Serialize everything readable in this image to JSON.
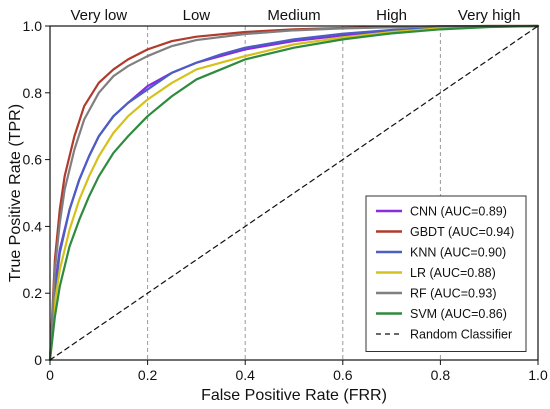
{
  "chart_data": {
    "type": "line",
    "title": "",
    "xlabel": "False Positive Rate (FRR)",
    "ylabel": "True Positive Rate (TPR)",
    "xlim": [
      0,
      1
    ],
    "ylim": [
      0,
      1
    ],
    "x_ticks": [
      "0",
      "0.2",
      "0.4",
      "0.6",
      "0.8",
      "1.0"
    ],
    "y_ticks": [
      "0",
      "0.2",
      "0.4",
      "0.6",
      "0.8",
      "1.0"
    ],
    "grid": "vertical dashed lines at 0.2, 0.4, 0.6, 0.8",
    "legend_position": "bottom-right",
    "regions": [
      {
        "label": "Very low",
        "from": 0.0,
        "to": 0.2
      },
      {
        "label": "Low",
        "from": 0.2,
        "to": 0.4
      },
      {
        "label": "Medium",
        "from": 0.4,
        "to": 0.6
      },
      {
        "label": "High",
        "from": 0.6,
        "to": 0.8
      },
      {
        "label": "Very high",
        "from": 0.8,
        "to": 1.0
      }
    ],
    "series": [
      {
        "name": "CNN (AUC=0.89)",
        "color": "#8a2be2",
        "x": [
          0,
          0.01,
          0.02,
          0.04,
          0.06,
          0.08,
          0.1,
          0.13,
          0.16,
          0.2,
          0.25,
          0.3,
          0.35,
          0.4,
          0.5,
          0.6,
          0.7,
          0.8,
          0.9,
          1.0
        ],
        "y": [
          0,
          0.22,
          0.33,
          0.45,
          0.54,
          0.61,
          0.67,
          0.73,
          0.77,
          0.82,
          0.86,
          0.89,
          0.91,
          0.93,
          0.955,
          0.972,
          0.985,
          0.994,
          0.998,
          1.0
        ]
      },
      {
        "name": "GBDT (AUC=0.94)",
        "color": "#b03a2e",
        "x": [
          0,
          0.01,
          0.02,
          0.03,
          0.05,
          0.07,
          0.1,
          0.13,
          0.16,
          0.2,
          0.25,
          0.3,
          0.4,
          0.5,
          0.6,
          0.7,
          0.8,
          0.9,
          1.0
        ],
        "y": [
          0,
          0.3,
          0.45,
          0.55,
          0.67,
          0.76,
          0.83,
          0.87,
          0.9,
          0.93,
          0.955,
          0.968,
          0.982,
          0.99,
          0.994,
          0.997,
          0.999,
          1.0,
          1.0
        ]
      },
      {
        "name": "KNN (AUC=0.90)",
        "color": "#4a5fc1",
        "x": [
          0,
          0.01,
          0.02,
          0.04,
          0.06,
          0.08,
          0.1,
          0.13,
          0.16,
          0.2,
          0.25,
          0.3,
          0.35,
          0.4,
          0.5,
          0.6,
          0.7,
          0.8,
          0.9,
          1.0
        ],
        "y": [
          0,
          0.2,
          0.32,
          0.45,
          0.54,
          0.61,
          0.67,
          0.73,
          0.77,
          0.81,
          0.86,
          0.89,
          0.915,
          0.935,
          0.96,
          0.977,
          0.988,
          0.995,
          0.999,
          1.0
        ]
      },
      {
        "name": "LR (AUC=0.88)",
        "color": "#d4c21a",
        "x": [
          0,
          0.01,
          0.02,
          0.04,
          0.06,
          0.08,
          0.1,
          0.13,
          0.16,
          0.2,
          0.25,
          0.3,
          0.35,
          0.4,
          0.5,
          0.6,
          0.7,
          0.8,
          0.9,
          1.0
        ],
        "y": [
          0,
          0.17,
          0.27,
          0.39,
          0.48,
          0.55,
          0.61,
          0.68,
          0.73,
          0.78,
          0.83,
          0.87,
          0.89,
          0.91,
          0.945,
          0.966,
          0.982,
          0.993,
          0.998,
          1.0
        ]
      },
      {
        "name": "RF (AUC=0.93)",
        "color": "#7f7f7f",
        "x": [
          0,
          0.01,
          0.02,
          0.03,
          0.05,
          0.07,
          0.1,
          0.13,
          0.16,
          0.2,
          0.25,
          0.3,
          0.4,
          0.5,
          0.6,
          0.7,
          0.8,
          0.9,
          1.0
        ],
        "y": [
          0,
          0.27,
          0.41,
          0.51,
          0.63,
          0.72,
          0.8,
          0.85,
          0.88,
          0.91,
          0.94,
          0.958,
          0.976,
          0.987,
          0.993,
          0.996,
          0.999,
          1.0,
          1.0
        ]
      },
      {
        "name": "SVM (AUC=0.86)",
        "color": "#2e8b3d",
        "x": [
          0,
          0.01,
          0.02,
          0.04,
          0.06,
          0.08,
          0.1,
          0.13,
          0.16,
          0.2,
          0.25,
          0.3,
          0.35,
          0.4,
          0.5,
          0.6,
          0.7,
          0.8,
          0.9,
          1.0
        ],
        "y": [
          0,
          0.13,
          0.22,
          0.34,
          0.42,
          0.49,
          0.55,
          0.62,
          0.67,
          0.73,
          0.79,
          0.84,
          0.87,
          0.9,
          0.935,
          0.96,
          0.978,
          0.99,
          0.997,
          1.0
        ]
      },
      {
        "name": "Random Classifier",
        "color": "#111111",
        "dashed": true,
        "x": [
          0,
          1.0
        ],
        "y": [
          0,
          1.0
        ]
      }
    ]
  }
}
